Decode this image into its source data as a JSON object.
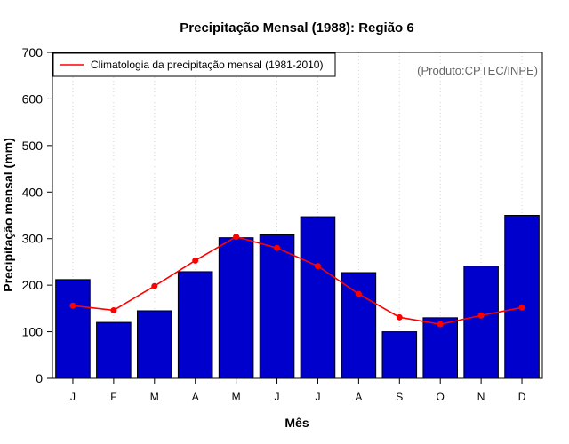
{
  "chart_data": {
    "type": "bar",
    "title": "Precipitação Mensal (1988): Região 6",
    "xlabel": "Mês",
    "ylabel": "Precipitação mensal (mm)",
    "categories": [
      "J",
      "F",
      "M",
      "A",
      "M",
      "J",
      "J",
      "A",
      "S",
      "O",
      "N",
      "D"
    ],
    "ylim": [
      0,
      700
    ],
    "yticks": [
      "0",
      "100",
      "200",
      "300",
      "400",
      "500",
      "600",
      "700"
    ],
    "series": [
      {
        "name": "Precipitação mensal 1988",
        "type": "bar",
        "color": "#0000cd",
        "values": [
          212,
          120,
          145,
          229,
          302,
          308,
          347,
          227,
          100,
          130,
          241,
          350
        ]
      },
      {
        "name": "Climatologia da precipitação mensal (1981-2010)",
        "type": "line",
        "color": "#ff0000",
        "values": [
          156,
          146,
          198,
          253,
          304,
          280,
          241,
          181,
          131,
          116,
          135,
          152
        ]
      }
    ],
    "legend": {
      "position": "top-left",
      "entries": [
        "Climatologia da precipitação mensal (1981-2010)"
      ]
    },
    "annotation": "(Produto:CPTEC/INPE)",
    "grid": "vertical-dotted"
  }
}
